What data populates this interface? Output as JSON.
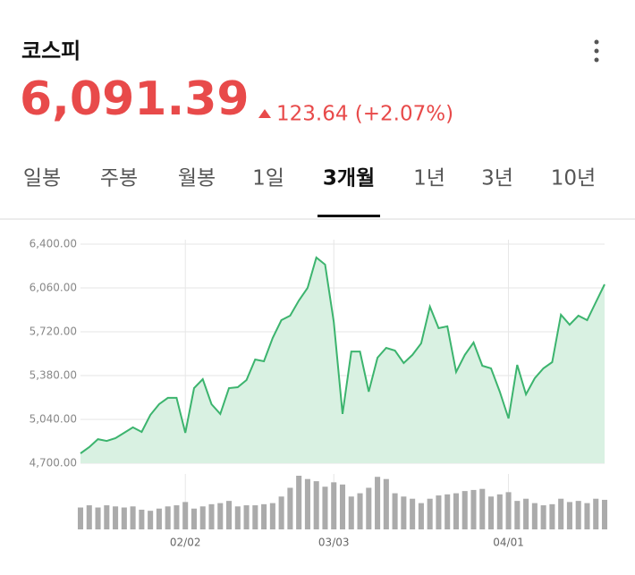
{
  "header": {
    "title": "코스피",
    "price": "6,091.39",
    "change": "123.64 (+2.07%)"
  },
  "tabs": [
    "일봉",
    "주봉",
    "월봉",
    "1일",
    "3개월",
    "1년",
    "3년",
    "10년"
  ],
  "active_tab": 4,
  "chart_data": {
    "type": "line",
    "categories": [
      null,
      null,
      null,
      null,
      null,
      null,
      null,
      null,
      null,
      null,
      null,
      null,
      "02/02",
      null,
      null,
      null,
      null,
      null,
      null,
      null,
      null,
      null,
      null,
      null,
      null,
      null,
      null,
      null,
      null,
      "03/03",
      null,
      null,
      null,
      null,
      null,
      null,
      null,
      null,
      null,
      null,
      null,
      null,
      null,
      null,
      null,
      null,
      null,
      null,
      null,
      "04/01",
      null,
      null,
      null,
      null,
      null,
      null,
      null,
      null,
      null,
      null,
      null
    ],
    "values": [
      4776,
      4825,
      4887,
      4873,
      4894,
      4936,
      4978,
      4943,
      5075,
      5158,
      5207,
      5207,
      4936,
      5283,
      5352,
      5158,
      5082,
      5283,
      5290,
      5345,
      5505,
      5491,
      5672,
      5810,
      5845,
      5963,
      6060,
      6296,
      6241,
      5796,
      5082,
      5567,
      5567,
      5255,
      5519,
      5595,
      5574,
      5477,
      5540,
      5630,
      5915,
      5748,
      5762,
      5408,
      5540,
      5637,
      5456,
      5436,
      5255,
      5047,
      5463,
      5234,
      5359,
      5436,
      5484,
      5852,
      5775,
      5845,
      5810,
      5949,
      6088
    ],
    "volume": [
      20,
      22,
      20,
      22,
      21,
      20,
      21,
      18,
      17,
      19,
      21,
      22,
      25,
      19,
      21,
      23,
      24,
      26,
      21,
      22,
      22,
      23,
      24,
      30,
      38,
      49,
      46,
      44,
      39,
      43,
      41,
      30,
      33,
      38,
      48,
      46,
      33,
      30,
      28,
      24,
      28,
      31,
      32,
      33,
      35,
      36,
      37,
      30,
      32,
      34,
      26,
      28,
      24,
      22,
      23,
      28,
      25,
      26,
      24,
      28,
      27
    ],
    "color": "#3cb46e",
    "area_color": "#d9f1e2",
    "volume_color": "#ababab",
    "ylim": [
      4700,
      6400
    ],
    "yticks": [
      {
        "value": 4700,
        "label": "4,700.00"
      },
      {
        "value": 5040,
        "label": "5,040.00"
      },
      {
        "value": 5380,
        "label": "5,380.00"
      },
      {
        "value": 5720,
        "label": "5,720.00"
      },
      {
        "value": 6060,
        "label": "6,060.00"
      },
      {
        "value": 6400,
        "label": "6,400.00"
      }
    ],
    "grid": true
  }
}
